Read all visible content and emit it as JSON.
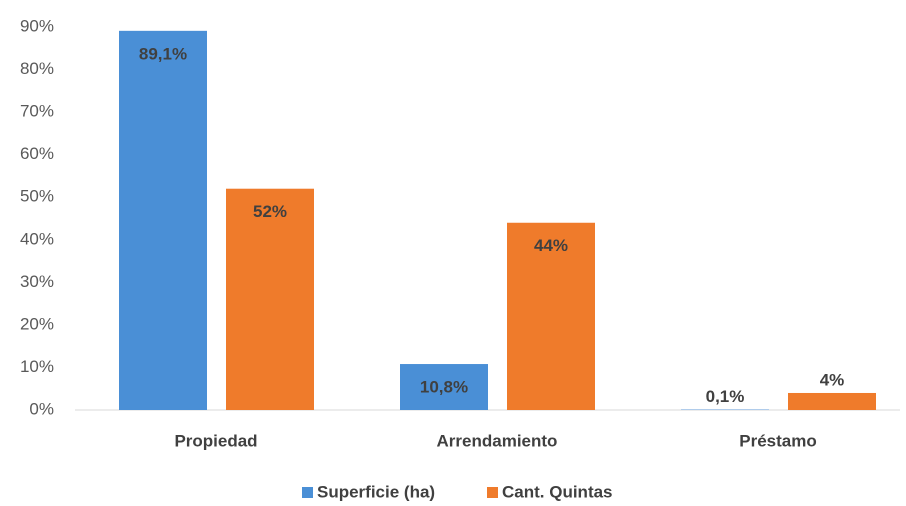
{
  "chart_data": {
    "type": "bar",
    "categories": [
      "Propiedad",
      "Arrendamiento",
      "Préstamo"
    ],
    "series": [
      {
        "name": "Superficie (ha)",
        "color": "#4a8fd6",
        "values": [
          89.1,
          10.8,
          0.1
        ],
        "value_labels": [
          "89,1%",
          "10,8%",
          "0,1%"
        ]
      },
      {
        "name": "Cant. Quintas",
        "color": "#ef7b2b",
        "values": [
          52,
          44,
          4
        ],
        "value_labels": [
          "52%",
          "44%",
          "4%"
        ]
      }
    ],
    "ylim": [
      0,
      90
    ],
    "yticks": [
      {
        "value": 0,
        "label": "0%"
      },
      {
        "value": 10,
        "label": "10%"
      },
      {
        "value": 20,
        "label": "20%"
      },
      {
        "value": 30,
        "label": "30%"
      },
      {
        "value": 40,
        "label": "40%"
      },
      {
        "value": 50,
        "label": "50%"
      },
      {
        "value": 60,
        "label": "60%"
      },
      {
        "value": 70,
        "label": "70%"
      },
      {
        "value": 80,
        "label": "80%"
      },
      {
        "value": 90,
        "label": "90%"
      }
    ],
    "grid": false,
    "legend": "bottom"
  }
}
